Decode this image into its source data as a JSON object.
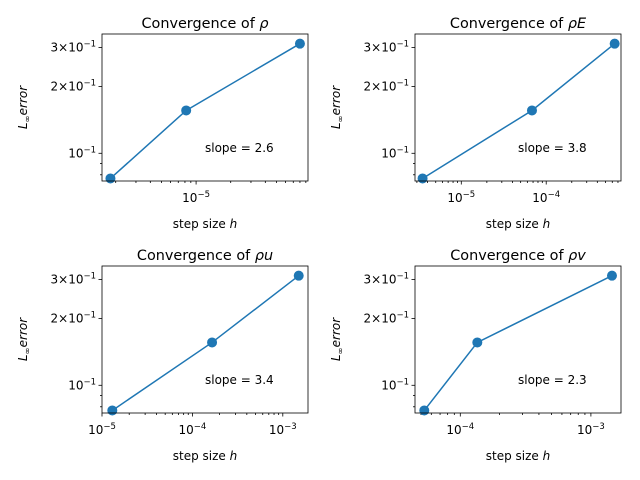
{
  "chart_data": [
    {
      "type": "line",
      "title_prefix": "Convergence of ",
      "title_var": "ρ",
      "xlabel_prefix": "step size ",
      "xlabel_var": "h",
      "ylabel_main": "L",
      "ylabel_sub": "∞",
      "ylabel_rest": "error",
      "xscale": "log",
      "yscale": "log",
      "xlim": [
        1.52e-06,
        9.4e-05
      ],
      "ylim": [
        0.075,
        0.345
      ],
      "series": [
        {
          "x": [
            1.8e-06,
            8.2e-06,
            8e-05
          ],
          "y": [
            0.077,
            0.156,
            0.312
          ]
        }
      ],
      "xticks_major": [
        {
          "value": 1e-05,
          "base": "10",
          "exp": "−5"
        }
      ],
      "annotation": "slope = 2.6"
    },
    {
      "type": "line",
      "title_prefix": "Convergence of ",
      "title_var": "ρE",
      "xlabel_prefix": "step size ",
      "xlabel_var": "h",
      "ylabel_main": "L",
      "ylabel_sub": "∞",
      "ylabel_rest": "error",
      "xscale": "log",
      "yscale": "log",
      "xlim": [
        2.85e-06,
        0.00076
      ],
      "ylim": [
        0.075,
        0.345
      ],
      "series": [
        {
          "x": [
            3.5e-06,
            6.8e-05,
            0.00064
          ],
          "y": [
            0.077,
            0.156,
            0.312
          ]
        }
      ],
      "xticks_major": [
        {
          "value": 1e-05,
          "base": "10",
          "exp": "−5"
        },
        {
          "value": 0.0001,
          "base": "10",
          "exp": "−4"
        }
      ],
      "annotation": "slope = 3.8"
    },
    {
      "type": "line",
      "title_prefix": "Convergence of ",
      "title_var": "ρu",
      "xlabel_prefix": "step size ",
      "xlabel_var": "h",
      "ylabel_main": "L",
      "ylabel_sub": "∞",
      "ylabel_rest": "error",
      "xscale": "log",
      "yscale": "log",
      "xlim": [
        1e-05,
        0.0019
      ],
      "ylim": [
        0.075,
        0.345
      ],
      "series": [
        {
          "x": [
            1.3e-05,
            0.000165,
            0.0015
          ],
          "y": [
            0.077,
            0.156,
            0.312
          ]
        }
      ],
      "xticks_major": [
        {
          "value": 1e-05,
          "base": "10",
          "exp": "−5"
        },
        {
          "value": 0.0001,
          "base": "10",
          "exp": "−4"
        },
        {
          "value": 0.001,
          "base": "10",
          "exp": "−3"
        }
      ],
      "annotation": "slope = 3.4"
    },
    {
      "type": "line",
      "title_prefix": "Convergence of ",
      "title_var": "ρv",
      "xlabel_prefix": "step size ",
      "xlabel_var": "h",
      "ylabel_main": "L",
      "ylabel_sub": "∞",
      "ylabel_rest": "error",
      "xscale": "log",
      "yscale": "log",
      "xlim": [
        4.5e-05,
        0.0017
      ],
      "ylim": [
        0.075,
        0.345
      ],
      "series": [
        {
          "x": [
            5.3e-05,
            0.000135,
            0.00145
          ],
          "y": [
            0.077,
            0.156,
            0.312
          ]
        }
      ],
      "xticks_major": [
        {
          "value": 0.0001,
          "base": "10",
          "exp": "−4"
        },
        {
          "value": 0.001,
          "base": "10",
          "exp": "−3"
        }
      ],
      "annotation": "slope = 2.3"
    }
  ],
  "yticks_major": [
    {
      "value": 0.1,
      "mant": "",
      "base": "10",
      "exp": "−1"
    },
    {
      "value": 0.2,
      "mant": "2×",
      "base": "10",
      "exp": "−1"
    },
    {
      "value": 0.3,
      "mant": "3×",
      "base": "10",
      "exp": "−1"
    }
  ]
}
